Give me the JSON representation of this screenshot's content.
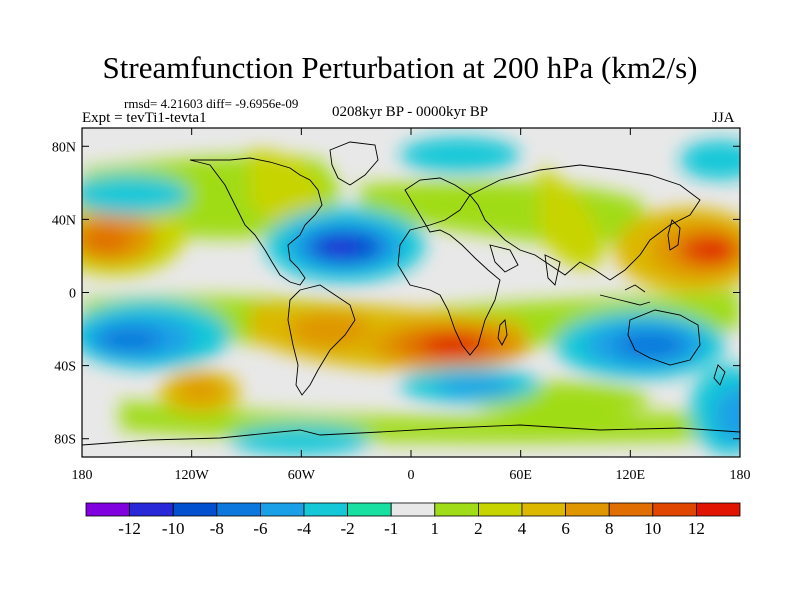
{
  "title": "Streamfunction Perturbation at 200 hPa (km2/s)",
  "stats": "rmsd= 4.21603 diff= -9.6956e-09",
  "experiment": "Expt = tevTi1-tevta1",
  "period": "0208kyr BP - 0000kyr BP",
  "season": "JJA",
  "map": {
    "projection": "cylindrical equidistant",
    "lon_range": [
      -180,
      180
    ],
    "lat_range": [
      -90,
      90
    ],
    "lat_ticks": [
      {
        "value": 80,
        "label": "80N"
      },
      {
        "value": 40,
        "label": "40N"
      },
      {
        "value": 0,
        "label": "0"
      },
      {
        "value": -40,
        "label": "40S"
      },
      {
        "value": -80,
        "label": "80S"
      }
    ],
    "lon_ticks": [
      {
        "value": -180,
        "label": "180"
      },
      {
        "value": -120,
        "label": "120W"
      },
      {
        "value": -60,
        "label": "60W"
      },
      {
        "value": 0,
        "label": "0"
      },
      {
        "value": 60,
        "label": "60E"
      },
      {
        "value": 120,
        "label": "120E"
      },
      {
        "value": 180,
        "label": "180"
      }
    ]
  },
  "colorbar": {
    "colors": [
      "#8000e0",
      "#2828d8",
      "#0050d0",
      "#0a78dc",
      "#1aa0e6",
      "#14c8d8",
      "#18e0a0",
      "#e8e8e8",
      "#a0dc18",
      "#c8d400",
      "#dcb800",
      "#e09600",
      "#e06e00",
      "#e04600",
      "#e01400"
    ],
    "labels": [
      "-12",
      "-10",
      "-8",
      "-6",
      "-4",
      "-2",
      "-1",
      "1",
      "2",
      "4",
      "6",
      "8",
      "10",
      "12"
    ]
  }
}
